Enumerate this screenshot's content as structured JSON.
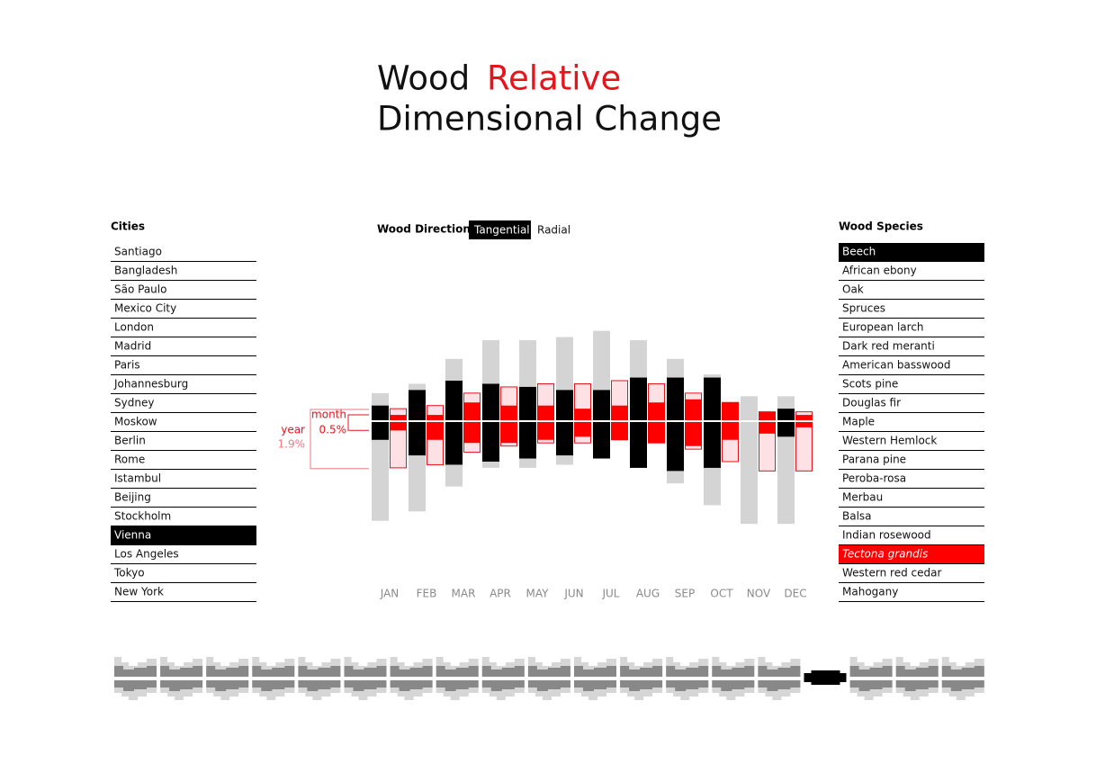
{
  "title": [
    "Wood",
    "Relative",
    "Dimensional Change"
  ],
  "cities": {
    "heading": "Cities",
    "items": [
      {
        "name": "Santiago"
      },
      {
        "name": "Bangladesh"
      },
      {
        "name": "São Paulo"
      },
      {
        "name": "Mexico City"
      },
      {
        "name": "London"
      },
      {
        "name": "Madrid"
      },
      {
        "name": "Paris"
      },
      {
        "name": "Johannesburg"
      },
      {
        "name": "Sydney"
      },
      {
        "name": "Moskow"
      },
      {
        "name": "Berlin"
      },
      {
        "name": "Rome"
      },
      {
        "name": "Istambul"
      },
      {
        "name": "Beijing"
      },
      {
        "name": "Stockholm"
      },
      {
        "name": "Vienna",
        "selected": true
      },
      {
        "name": "Los Angeles"
      },
      {
        "name": "Tokyo"
      },
      {
        "name": "New York"
      }
    ]
  },
  "direction": {
    "label": "Wood Direction",
    "options": [
      {
        "name": "Tangential",
        "selected": true
      },
      {
        "name": "Radial"
      }
    ]
  },
  "species": {
    "heading": "Wood Species",
    "items": [
      {
        "name": "Beech",
        "state": "selected"
      },
      {
        "name": "African ebony"
      },
      {
        "name": "Oak"
      },
      {
        "name": "Spruces"
      },
      {
        "name": "European larch"
      },
      {
        "name": "Dark red meranti"
      },
      {
        "name": "American basswood"
      },
      {
        "name": "Scots pine"
      },
      {
        "name": "Douglas fir"
      },
      {
        "name": "Maple"
      },
      {
        "name": "Western Hemlock"
      },
      {
        "name": "Parana pine"
      },
      {
        "name": "Peroba-rosa"
      },
      {
        "name": "Merbau"
      },
      {
        "name": "Balsa"
      },
      {
        "name": "Indian rosewood"
      },
      {
        "name": "Tectona grandis",
        "state": "highlighted"
      },
      {
        "name": "Western red cedar"
      },
      {
        "name": "Mahogany"
      }
    ]
  },
  "chart_data": {
    "type": "range-bar",
    "categories": [
      "JAN",
      "FEB",
      "MAR",
      "APR",
      "MAY",
      "JUN",
      "JUL",
      "AUG",
      "SEP",
      "OCT",
      "NOV",
      "DEC"
    ],
    "series": [
      {
        "color": "#d4d4d4",
        "position": "left",
        "high": [
          0.9,
          1.2,
          2.0,
          2.6,
          2.6,
          2.7,
          2.9,
          2.6,
          2.0,
          1.5,
          0.8,
          0.8
        ],
        "low": [
          -3.2,
          -2.9,
          -2.1,
          -1.5,
          -1.5,
          -1.4,
          -1.2,
          -1.5,
          -2.0,
          -2.7,
          -3.3,
          -3.3
        ]
      },
      {
        "color": "#000000",
        "position": "left",
        "high": [
          0.5,
          1.0,
          1.3,
          1.2,
          1.1,
          1.0,
          1.0,
          1.4,
          1.4,
          1.4,
          null,
          0.4
        ],
        "low": [
          -0.6,
          -1.1,
          -1.4,
          -1.3,
          -1.2,
          -1.1,
          -1.2,
          -1.5,
          -1.6,
          -1.5,
          null,
          -0.5
        ]
      },
      {
        "color": "#fde1e4",
        "stroke": "#e8131b",
        "position": "right",
        "high": [
          0.4,
          0.5,
          0.9,
          1.1,
          1.2,
          1.2,
          1.3,
          1.2,
          0.9,
          0.6,
          0.3,
          0.3
        ],
        "low": [
          -1.5,
          -1.4,
          -1.0,
          -0.8,
          -0.7,
          -0.7,
          -0.6,
          -0.7,
          -0.9,
          -1.3,
          -1.6,
          -1.6
        ]
      },
      {
        "color": "#ff0000",
        "position": "right",
        "high": [
          0.2,
          0.2,
          0.6,
          0.5,
          0.5,
          0.4,
          0.5,
          0.6,
          0.7,
          0.6,
          0.3,
          0.2
        ],
        "low": [
          -0.3,
          -0.6,
          -0.7,
          -0.7,
          -0.6,
          -0.5,
          -0.6,
          -0.7,
          -0.8,
          -0.6,
          -0.4,
          -0.2
        ]
      }
    ],
    "annotations": [
      {
        "label": "month",
        "value": 0.5,
        "value_label": "0.5%"
      },
      {
        "label": "year",
        "value": 1.9,
        "value_label": "1.9%"
      }
    ]
  }
}
